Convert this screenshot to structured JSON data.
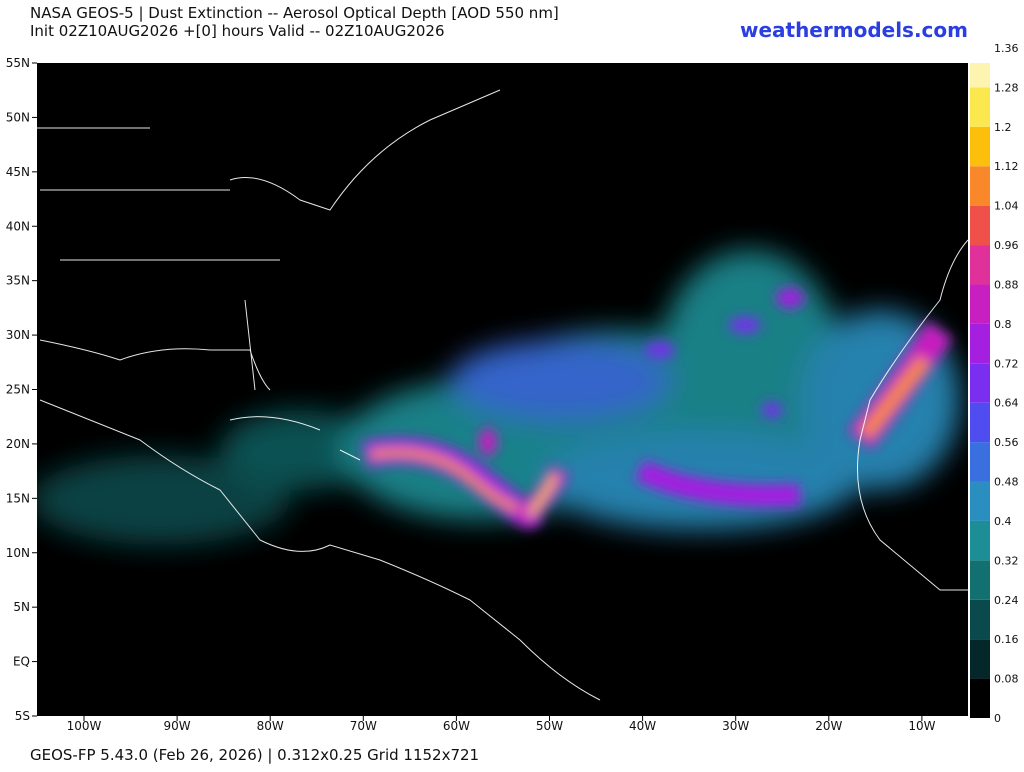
{
  "header": {
    "title": "NASA GEOS-5 | Dust Extinction -- Aerosol Optical Depth [AOD 550 nm]",
    "subtitle": "Init 02Z10AUG2026 +[0] hours Valid -- 02Z10AUG2026",
    "site": "weathermodels.com"
  },
  "map": {
    "lat_labels": [
      "55N",
      "50N",
      "45N",
      "40N",
      "35N",
      "30N",
      "25N",
      "20N",
      "15N",
      "10N",
      "5N",
      "EQ",
      "5S"
    ],
    "lon_labels": [
      "100W",
      "90W",
      "80W",
      "70W",
      "60W",
      "50W",
      "40W",
      "30W",
      "20W",
      "10W"
    ]
  },
  "colorbar": {
    "ticks": [
      0,
      0.08,
      0.16,
      0.24,
      0.32,
      0.4,
      0.48,
      0.56,
      0.64,
      0.72,
      0.8,
      0.88,
      0.96,
      1.04,
      1.12,
      1.2,
      1.28,
      1.36
    ],
    "colors": [
      "#000000",
      "#04282a",
      "#0a4a4c",
      "#127070",
      "#1d8e95",
      "#2a8fc0",
      "#3a6fe0",
      "#4f4df0",
      "#7a2ff0",
      "#a41fe0",
      "#c81fc0",
      "#e0309a",
      "#f0504a",
      "#f8882a",
      "#fcc00c",
      "#fbe84e",
      "#fdf4b0"
    ]
  },
  "footer": "GEOS-FP 5.43.0 (Feb 26, 2026) | 0.312x0.25 Grid 1152x721"
}
